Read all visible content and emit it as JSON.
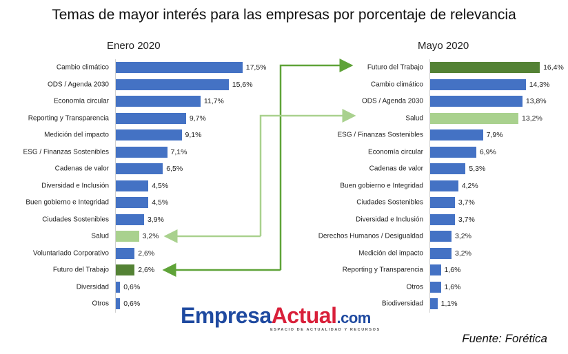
{
  "title": "Temas de mayor interés para las empresas por porcentaje de relevancia",
  "source": "Fuente: Forética",
  "logo": {
    "part1": "Empresa",
    "part2": "Actual",
    "part3": ".com",
    "tagline": "ESPACIO DE ACTUALIDAD Y RECURSOS"
  },
  "colors": {
    "default": "#4472c4",
    "salud": "#a9d18e",
    "futuro": "#548235"
  },
  "chart_data": [
    {
      "type": "bar",
      "orientation": "horizontal",
      "title": "Enero 2020",
      "unit": "%",
      "categories": [
        "Cambio climático",
        "ODS / Agenda 2030",
        "Economía circular",
        "Reporting y Transparencia",
        "Medición del impacto",
        "ESG / Finanzas Sostenibles",
        "Cadenas de valor",
        "Diversidad e Inclusión",
        "Buen gobierno e Integridad",
        "Ciudades Sostenibles",
        "Salud",
        "Voluntariado Corporativo",
        "Futuro del Trabajo",
        "Diversidad",
        "Otros"
      ],
      "values": [
        17.5,
        15.6,
        11.7,
        9.7,
        9.1,
        7.1,
        6.5,
        4.5,
        4.5,
        3.9,
        3.2,
        2.6,
        2.6,
        0.6,
        0.6
      ],
      "labels": [
        "17,5%",
        "15,6%",
        "11,7%",
        "9,7%",
        "9,1%",
        "7,1%",
        "6,5%",
        "4,5%",
        "4,5%",
        "3,9%",
        "3,2%",
        "2,6%",
        "2,6%",
        "0,6%",
        "0,6%"
      ]
    },
    {
      "type": "bar",
      "orientation": "horizontal",
      "title": "Mayo 2020",
      "unit": "%",
      "categories": [
        "Futuro del Trabajo",
        "Cambio climático",
        "ODS / Agenda 2030",
        "Salud",
        "ESG / Finanzas Sostenibles",
        "Economía circular",
        "Cadenas de valor",
        "Buen gobierno e Integridad",
        "Ciudades Sostenibles",
        "Diversidad e Inclusión",
        "Derechos Humanos / Desigualdad",
        "Medición del impacto",
        "Reporting y Transparencia",
        "Otros",
        "Biodiversidad"
      ],
      "values": [
        16.4,
        14.3,
        13.8,
        13.2,
        7.9,
        6.9,
        5.3,
        4.2,
        3.7,
        3.7,
        3.2,
        3.2,
        1.6,
        1.6,
        1.1
      ],
      "labels": [
        "16,4%",
        "14,3%",
        "13,8%",
        "13,2%",
        "7,9%",
        "6,9%",
        "5,3%",
        "4,2%",
        "3,7%",
        "3,7%",
        "3,2%",
        "3,2%",
        "1,6%",
        "1,6%",
        "1,1%"
      ]
    }
  ]
}
